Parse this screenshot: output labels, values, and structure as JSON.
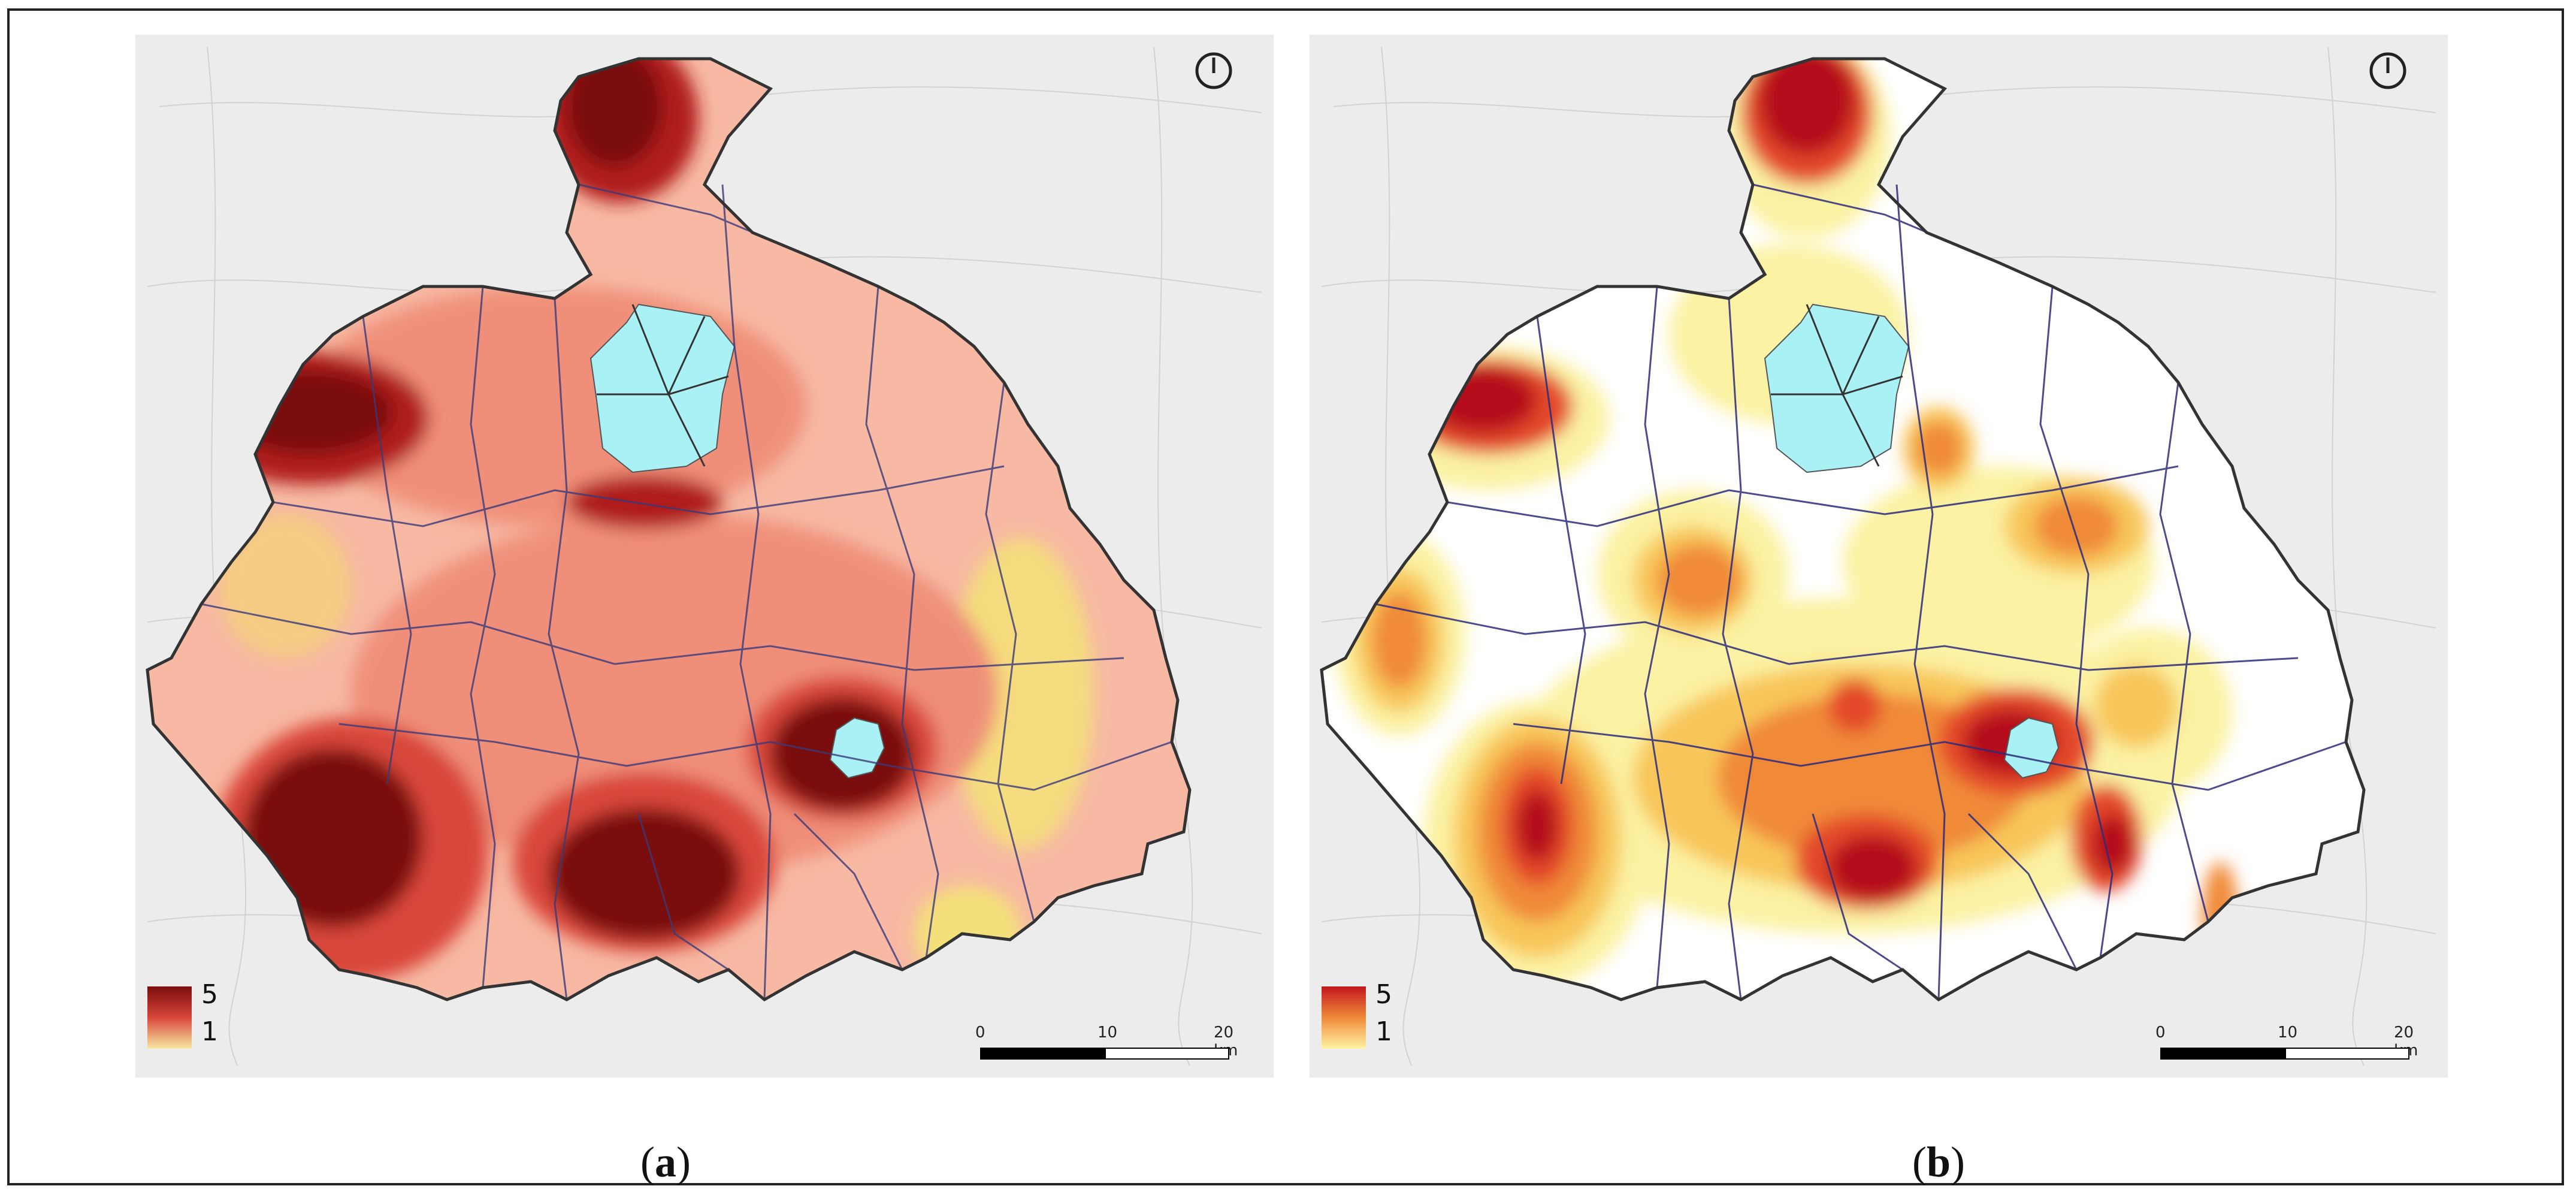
{
  "panels": [
    {
      "id": "a",
      "caption_letter": "a",
      "legend": {
        "high_label": "5",
        "low_label": "1",
        "high_color": "#7a0c0c",
        "low_color": "#f6e9a4"
      },
      "scale": {
        "tick_0": "0",
        "tick_1": "10",
        "tick_2": "20 km"
      },
      "palette": [
        "#f7b9a3",
        "#ef8f79",
        "#d9473a",
        "#b01e1e",
        "#7a0c0c"
      ]
    },
    {
      "id": "b",
      "caption_letter": "b",
      "legend": {
        "high_label": "5",
        "low_label": "1",
        "high_color": "#c3161d",
        "low_color": "#fff3a6"
      },
      "scale": {
        "tick_0": "0",
        "tick_1": "10",
        "tick_2": "20 km"
      },
      "palette": [
        "#fbf2a3",
        "#f8c65a",
        "#f08a38",
        "#e3482a",
        "#b5101c"
      ]
    }
  ],
  "colors": {
    "lake": "#aaf1f6",
    "basemap": "#e9e9e9",
    "border": "#333333",
    "inner_border": "#3a3a7a"
  }
}
